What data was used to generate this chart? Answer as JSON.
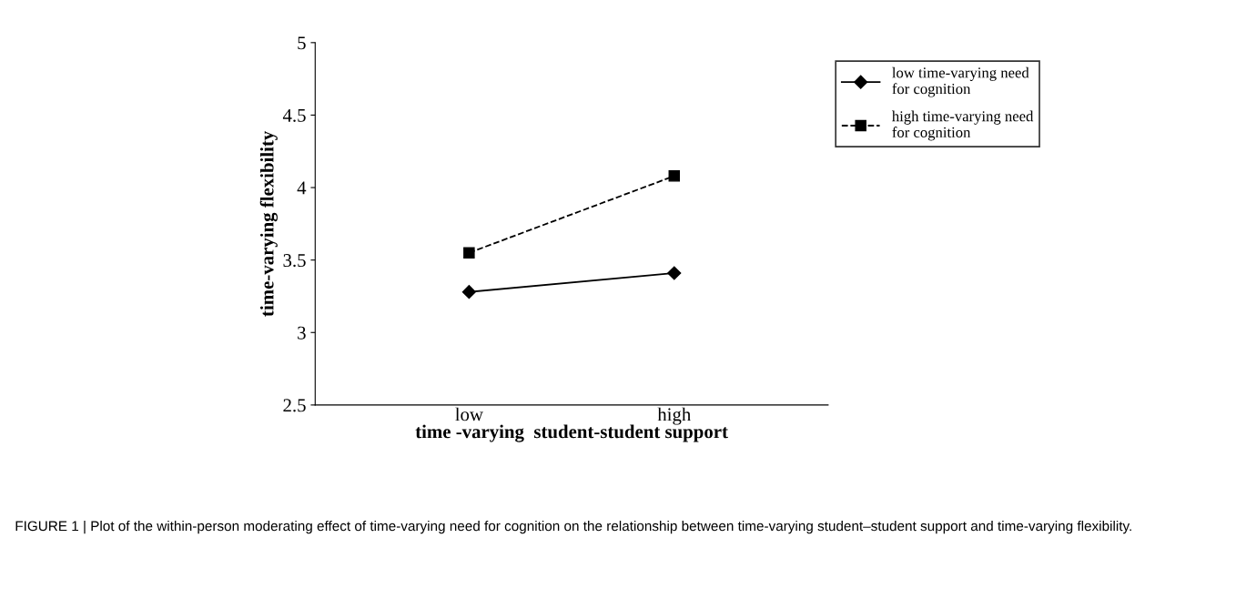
{
  "chart_data": {
    "type": "line",
    "xlabel": "time -varying  student-student support",
    "ylabel": "time-varying flexibility",
    "categories": [
      "low",
      "high"
    ],
    "series": [
      {
        "name": "low time-varying need\nfor cognition",
        "color": "#000000",
        "values": [
          3.28,
          3.41
        ],
        "marker": "diamond",
        "line_style": "solid"
      },
      {
        "name": "high time-varying need\nfor cognition",
        "color": "#000000",
        "values": [
          3.55,
          4.08
        ],
        "marker": "square",
        "line_style": "dashed"
      }
    ],
    "ylim": [
      2.5,
      5
    ],
    "yticks": [
      2.5,
      3,
      3.5,
      4,
      4.5,
      5
    ],
    "grid": false,
    "legend": "top right",
    "annotations": [
      "FIGURE 1 | Plot of the within-person moderating effect of time-varying need for cognition on the relationship between time-varying student–student support and time-varying flexibility."
    ]
  }
}
